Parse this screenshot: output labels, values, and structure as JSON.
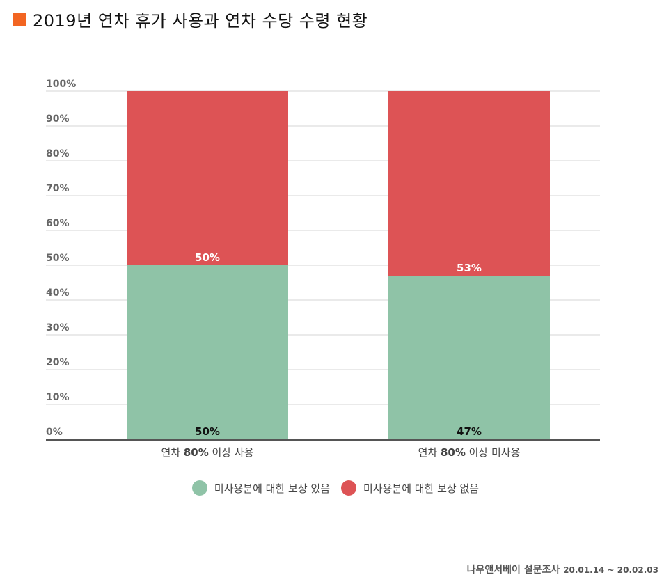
{
  "title": "2019년 연차 휴가 사용과 연차 수당 수령 현황",
  "source": "나우앤서베이 설문조사",
  "source_date": "20.01.14 ~ 20.02.03",
  "colors": {
    "title_square": "#f26522",
    "green": "#8fc3a7",
    "red": "#dd5355"
  },
  "chart_data": {
    "type": "bar",
    "stacked": true,
    "categories": [
      {
        "prefix": "연차 ",
        "bold": "80%",
        "suffix": " 이상 사용"
      },
      {
        "prefix": "연차 ",
        "bold": "80%",
        "suffix": " 이상 미사용"
      }
    ],
    "series": [
      {
        "name": "미사용분에 대한 보상 있음",
        "values": [
          50,
          47
        ],
        "labels": [
          "50%",
          "47%"
        ],
        "color": "#8fc3a7"
      },
      {
        "name": "미사용분에 대한 보상 없음",
        "values": [
          50,
          53
        ],
        "labels": [
          "50%",
          "53%"
        ],
        "color": "#dd5355"
      }
    ],
    "y_ticks": [
      "0%",
      "10%",
      "20%",
      "30%",
      "40%",
      "50%",
      "60%",
      "70%",
      "80%",
      "90%",
      "100%"
    ],
    "ylim": [
      0,
      100
    ],
    "grid": true,
    "legend_position": "bottom"
  }
}
